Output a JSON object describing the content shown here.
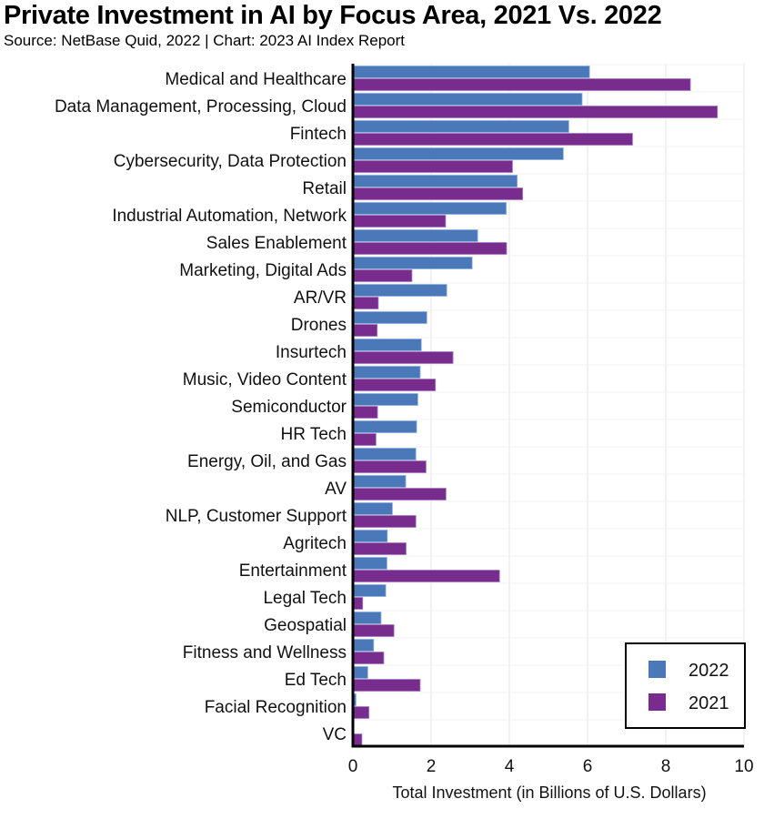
{
  "chart_data": {
    "type": "bar",
    "orientation": "horizontal",
    "title": "Private Investment in AI by Focus Area, 2021 Vs. 2022",
    "subtitle": "Source: NetBase Quid, 2022 | Chart: 2023 AI Index Report",
    "xlabel": "Total Investment (in Billions of U.S. Dollars)",
    "ylabel": "",
    "xlim": [
      0,
      10
    ],
    "xticks": [
      0,
      2,
      4,
      6,
      8,
      10
    ],
    "grid": true,
    "legend_position": "bottom-right",
    "categories": [
      "Medical and Healthcare",
      "Data Management, Processing, Cloud",
      "Fintech",
      "Cybersecurity, Data Protection",
      "Retail",
      "Industrial Automation, Network",
      "Sales Enablement",
      "Marketing, Digital Ads",
      "AR/VR",
      "Drones",
      "Insurtech",
      "Music, Video Content",
      "Semiconductor",
      "HR Tech",
      "Energy, Oil, and Gas",
      "AV",
      "NLP, Customer Support",
      "Agritech",
      "Entertainment",
      "Legal Tech",
      "Geospatial",
      "Fitness and Wellness",
      "Ed Tech",
      "Facial Recognition",
      "VC"
    ],
    "series": [
      {
        "name": "2022",
        "color": "#4A78B8",
        "values": [
          6.05,
          5.86,
          5.52,
          5.38,
          4.2,
          3.92,
          3.19,
          3.05,
          2.4,
          1.89,
          1.75,
          1.72,
          1.66,
          1.63,
          1.61,
          1.35,
          1.01,
          0.88,
          0.87,
          0.84,
          0.72,
          0.53,
          0.38,
          0.08,
          0.0
        ]
      },
      {
        "name": "2021",
        "color": "#772C8E",
        "values": [
          8.63,
          9.32,
          7.15,
          4.08,
          4.34,
          2.37,
          3.93,
          1.51,
          0.65,
          0.62,
          2.56,
          2.11,
          0.63,
          0.59,
          1.87,
          2.38,
          1.61,
          1.36,
          3.75,
          0.25,
          1.05,
          0.79,
          1.72,
          0.41,
          0.23
        ]
      }
    ]
  }
}
